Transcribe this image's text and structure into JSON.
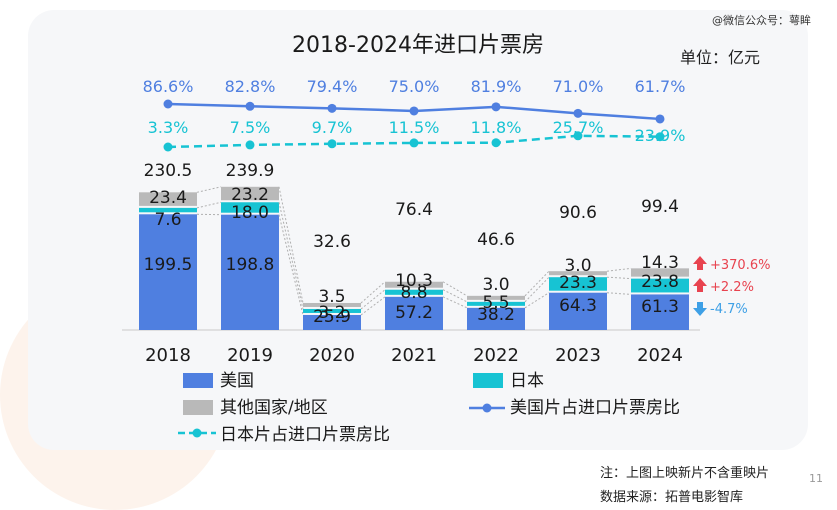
{
  "watermark": "@微信公众号：萼眸",
  "footnote": {
    "note": "注：上图上映新片不含重映片",
    "source": "数据来源：拓普电影智库"
  },
  "page_number": "11",
  "chart_data": {
    "type": "bar",
    "title": "2018-2024年进口片票房",
    "unit_label": "单位：亿元",
    "categories": [
      "2018",
      "2019",
      "2020",
      "2021",
      "2022",
      "2023",
      "2024"
    ],
    "totals": [
      "230.5",
      "239.9",
      "32.6",
      "76.4",
      "46.6",
      "90.6",
      "99.4"
    ],
    "series": [
      {
        "name": "美国",
        "color": "#4f7fe0",
        "values": [
          199.5,
          198.8,
          25.9,
          57.2,
          38.2,
          64.3,
          61.3
        ],
        "labels": [
          "199.5",
          "198.8",
          "25.9",
          "57.2",
          "38.2",
          "64.3",
          "61.3"
        ]
      },
      {
        "name": "日本",
        "color": "#17c3d3",
        "values": [
          7.6,
          18.0,
          3.2,
          8.8,
          5.5,
          23.3,
          23.8
        ],
        "labels": [
          "7.6",
          "18.0",
          "3.2",
          "8.8",
          "5.5",
          "23.3",
          "23.8"
        ]
      },
      {
        "name": "其他国家/地区",
        "color": "#b9b9b9",
        "values": [
          23.4,
          23.2,
          3.5,
          10.3,
          3.0,
          3.0,
          14.3
        ],
        "labels": [
          "23.4",
          "23.2",
          "3.5",
          "10.3",
          "3.0",
          "3.0",
          "14.3"
        ]
      }
    ],
    "lines": [
      {
        "name": "美国片占进口片票房比",
        "color": "#4f7fe0",
        "values": [
          86.6,
          82.8,
          79.4,
          75.0,
          81.9,
          71.0,
          61.7
        ],
        "labels": [
          "86.6%",
          "82.8%",
          "79.4%",
          "75.0%",
          "81.9%",
          "71.0%",
          "61.7%"
        ]
      },
      {
        "name": "日本片占进口片票房比",
        "color": "#17c3d3",
        "values": [
          3.3,
          7.5,
          9.7,
          11.5,
          11.8,
          25.7,
          23.9
        ],
        "labels": [
          "3.3%",
          "7.5%",
          "9.7%",
          "11.5%",
          "11.8%",
          "25.7%",
          "23.9%"
        ]
      }
    ],
    "changes": [
      {
        "label": "+370.6%",
        "direction": "up",
        "color": "#e8434f"
      },
      {
        "label": "+2.2%",
        "direction": "up",
        "color": "#e8434f"
      },
      {
        "label": "-4.7%",
        "direction": "down",
        "color": "#3ea0e6"
      }
    ],
    "legend": [
      "美国",
      "日本",
      "其他国家/地区",
      "美国片占进口片票房比",
      "日本片占进口片票房比"
    ]
  }
}
